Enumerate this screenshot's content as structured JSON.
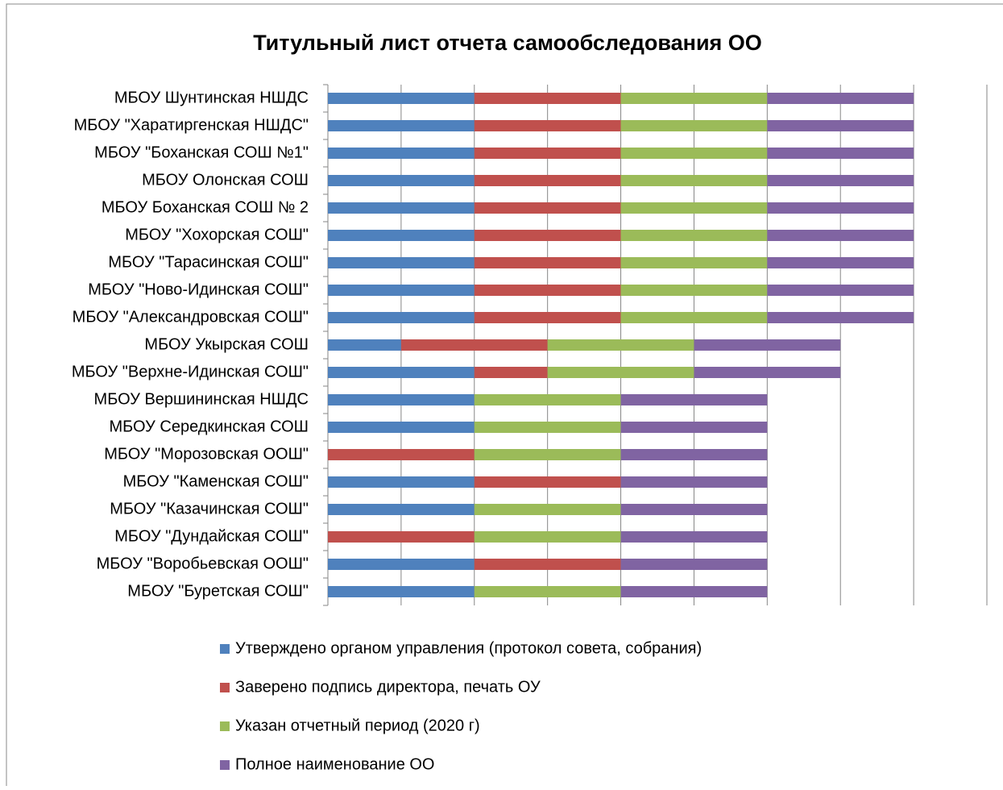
{
  "chart_data": {
    "type": "stacked_barh",
    "title": "Титульный лист отчета самообследования ОО",
    "categories": [
      "МБОУ Шунтинская НШДС",
      "МБОУ \"Харатиргенская НШДС\"",
      "МБОУ \"Боханская СОШ №1\"",
      "МБОУ Олонская СОШ",
      "МБОУ Боханская СОШ № 2",
      "МБОУ \"Хохорская СОШ\"",
      "МБОУ \"Тарасинская СОШ\"",
      "МБОУ \"Ново-Идинская СОШ\"",
      "МБОУ \"Александровская СОШ\"",
      "МБОУ Укырская СОШ",
      "МБОУ \"Верхне-Идинская СОШ\"",
      "МБОУ Вершининская НШДС",
      "МБОУ Середкинская СОШ",
      "МБОУ \"Морозовская ООШ\"",
      "МБОУ \"Каменская СОШ\"",
      "МБОУ \"Казачинская СОШ\"",
      "МБОУ \"Дундайская СОШ\"",
      "МБОУ \"Воробьевская ООШ\"",
      "МБОУ \"Буретская СОШ\""
    ],
    "series": [
      {
        "name": "Утверждено органом управления (протокол совета, собрания)",
        "color": "#4f81bd",
        "values": [
          1,
          1,
          1,
          1,
          1,
          1,
          1,
          1,
          1,
          0.5,
          1,
          1,
          1,
          0,
          1,
          1,
          0,
          1,
          1
        ]
      },
      {
        "name": "Заверено подпись директора, печать ОУ",
        "color": "#c0504d",
        "values": [
          1,
          1,
          1,
          1,
          1,
          1,
          1,
          1,
          1,
          1,
          0.5,
          0,
          0,
          1,
          1,
          0,
          1,
          1,
          0
        ]
      },
      {
        "name": "Указан отчетный период (2020 г)",
        "color": "#9bbb59",
        "values": [
          1,
          1,
          1,
          1,
          1,
          1,
          1,
          1,
          1,
          1,
          1,
          1,
          1,
          1,
          0,
          1,
          1,
          0,
          1
        ]
      },
      {
        "name": "Полное наименование ОО",
        "color": "#8064a2",
        "values": [
          1,
          1,
          1,
          1,
          1,
          1,
          1,
          1,
          1,
          1,
          1,
          1,
          1,
          1,
          1,
          1,
          1,
          1,
          1
        ]
      }
    ],
    "xlim": [
      0,
      4.5
    ],
    "xticks": [
      0,
      0.5,
      1,
      1.5,
      2,
      2.5,
      3,
      3.5,
      4,
      4.5
    ],
    "grid": true
  }
}
